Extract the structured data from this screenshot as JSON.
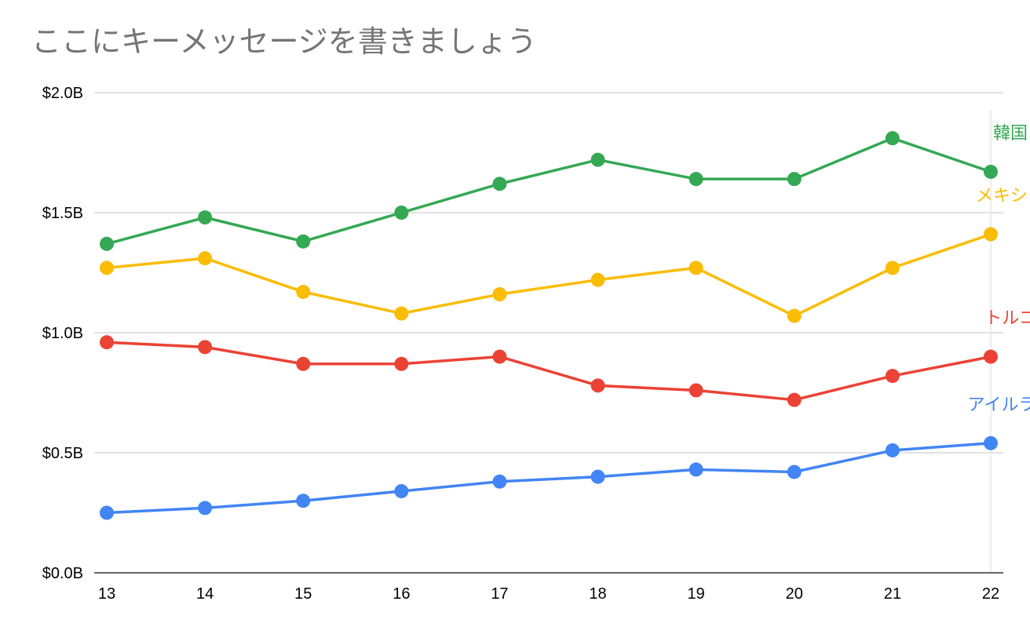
{
  "chart_data": {
    "type": "line",
    "title": "ここにキーメッセージを書きましょう",
    "xlabel": "",
    "ylabel": "",
    "x": [
      13,
      14,
      15,
      16,
      17,
      18,
      19,
      20,
      21,
      22
    ],
    "xtick_labels": [
      "13",
      "14",
      "15",
      "16",
      "17",
      "18",
      "19",
      "20",
      "21",
      "22"
    ],
    "ylim": [
      0,
      2.0
    ],
    "ytick_values": [
      0,
      0.5,
      1.0,
      1.5,
      2.0
    ],
    "ytick_labels": [
      "$0.0B",
      "$0.5B",
      "$1.0B",
      "$1.5B",
      "$2.0B"
    ],
    "grid": true,
    "legend": "direct labels at right end of lines",
    "series": [
      {
        "name": "韓国",
        "color": "#34A853",
        "values": [
          1.37,
          1.48,
          1.38,
          1.5,
          1.62,
          1.72,
          1.64,
          1.64,
          1.81,
          1.67
        ]
      },
      {
        "name": "メキシコ",
        "color": "#FBBC04",
        "values": [
          1.27,
          1.31,
          1.17,
          1.08,
          1.16,
          1.22,
          1.27,
          1.07,
          1.27,
          1.41
        ]
      },
      {
        "name": "トルコ",
        "color": "#EA4335",
        "values": [
          0.96,
          0.94,
          0.87,
          0.87,
          0.9,
          0.78,
          0.76,
          0.72,
          0.82,
          0.9
        ]
      },
      {
        "name": "アイルラン",
        "color": "#4285F4",
        "values": [
          0.25,
          0.27,
          0.3,
          0.34,
          0.38,
          0.4,
          0.43,
          0.42,
          0.51,
          0.54
        ]
      }
    ]
  }
}
